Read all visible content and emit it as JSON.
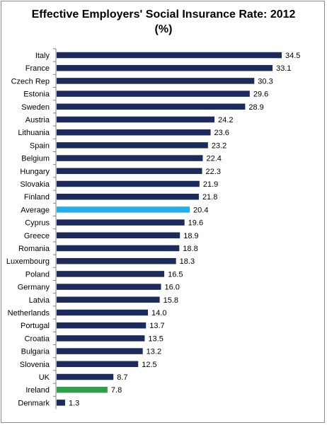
{
  "chart_data": {
    "type": "bar",
    "orientation": "horizontal",
    "title": "Effective Employers' Social Insurance Rate: 2012",
    "subtitle": "(%)",
    "xlabel": "",
    "ylabel": "",
    "xlim": [
      0,
      36
    ],
    "grid": false,
    "legend": "none",
    "colors": {
      "default": "#1c2a5c",
      "Average": "#22aee6",
      "Ireland": "#2ca14a"
    },
    "categories": [
      "Italy",
      "France",
      "Czech Rep",
      "Estonia",
      "Sweden",
      "Austria",
      "Lithuania",
      "Spain",
      "Belgium",
      "Hungary",
      "Slovakia",
      "Finland",
      "Average",
      "Cyprus",
      "Greece",
      "Romania",
      "Luxembourg",
      "Poland",
      "Germany",
      "Latvia",
      "Netherlands",
      "Portugal",
      "Croatia",
      "Bulgaria",
      "Slovenia",
      "UK",
      "Ireland",
      "Denmark"
    ],
    "values": [
      34.5,
      33.1,
      30.3,
      29.6,
      28.9,
      24.2,
      23.6,
      23.2,
      22.4,
      22.3,
      21.9,
      21.8,
      20.4,
      19.6,
      18.9,
      18.8,
      18.3,
      16.5,
      16.0,
      15.8,
      14.0,
      13.7,
      13.5,
      13.2,
      12.5,
      8.7,
      7.8,
      1.3
    ],
    "value_labels": [
      "34.5",
      "33.1",
      "30.3",
      "29.6",
      "28.9",
      "24.2",
      "23.6",
      "23.2",
      "22.4",
      "22.3",
      "21.9",
      "21.8",
      "20.4",
      "19.6",
      "18.9",
      "18.8",
      "18.3",
      "16.5",
      "16.0",
      "15.8",
      "14.0",
      "13.7",
      "13.5",
      "13.2",
      "12.5",
      "8.7",
      "7.8",
      "1.3"
    ]
  }
}
